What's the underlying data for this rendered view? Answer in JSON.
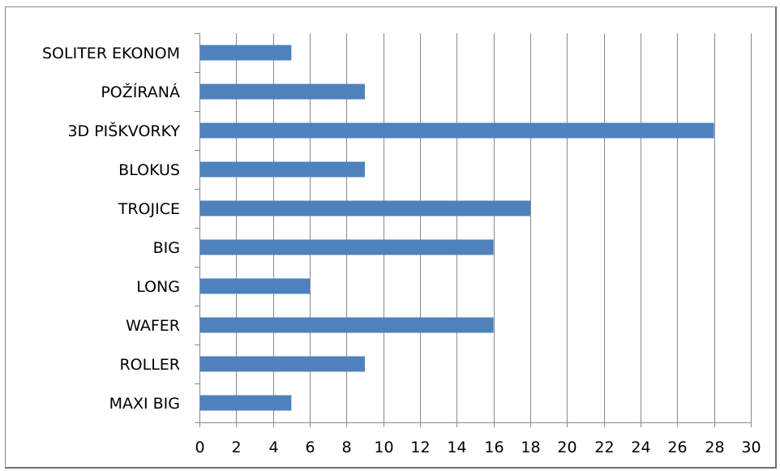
{
  "chart_data": {
    "type": "bar",
    "orientation": "horizontal",
    "categories": [
      "SOLITER EKONOM",
      "POŽÍRANÁ",
      "3D PIŠKVORKY",
      "BLOKUS",
      "TROJICE",
      "BIG",
      "LONG",
      "WAFER",
      "ROLLER",
      "MAXI BIG"
    ],
    "values": [
      5,
      9,
      28,
      9,
      18,
      16,
      6,
      16,
      9,
      5
    ],
    "xlim": [
      0,
      30
    ],
    "xticks": [
      "0",
      "2",
      "4",
      "6",
      "8",
      "10",
      "12",
      "14",
      "16",
      "18",
      "20",
      "22",
      "24",
      "26",
      "28",
      "30"
    ],
    "title": "",
    "xlabel": "",
    "ylabel": "",
    "grid": "vertical",
    "legend": "none",
    "bar_color": "#4f81bd"
  }
}
